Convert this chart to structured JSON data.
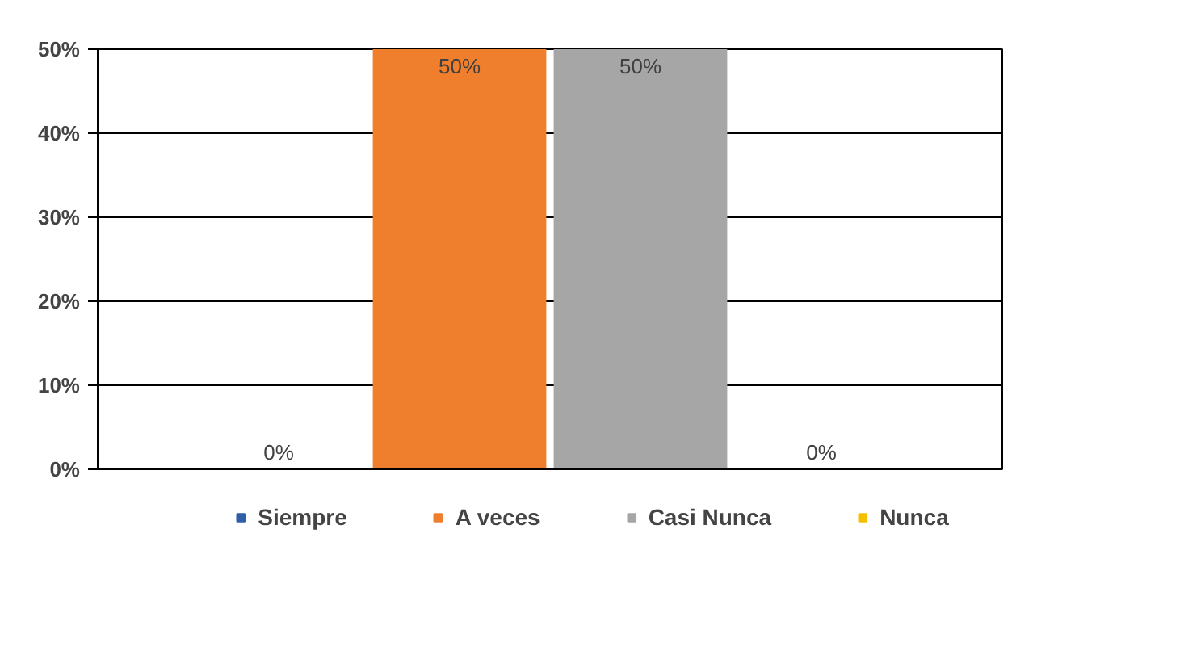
{
  "chart_data": {
    "type": "bar",
    "categories": [
      null
    ],
    "series": [
      {
        "name": "Siempre",
        "color": "#2e5fa8",
        "values": [
          0
        ],
        "value_labels": [
          "0%"
        ]
      },
      {
        "name": "A veces",
        "color": "#f07f2d",
        "values": [
          50
        ],
        "value_labels": [
          "50%"
        ]
      },
      {
        "name": "Casi Nunca",
        "color": "#a6a6a6",
        "values": [
          50
        ],
        "value_labels": [
          "50%"
        ]
      },
      {
        "name": "Nunca",
        "color": "#f5c000",
        "values": [
          0
        ],
        "value_labels": [
          "0%"
        ]
      }
    ],
    "ylim": [
      0,
      50
    ],
    "yticks": [
      {
        "value": 0,
        "label": "0%"
      },
      {
        "value": 10,
        "label": "10%"
      },
      {
        "value": 20,
        "label": "20%"
      },
      {
        "value": 30,
        "label": "30%"
      },
      {
        "value": 40,
        "label": "40%"
      },
      {
        "value": 50,
        "label": "50%"
      }
    ],
    "grid": "y",
    "legend": "bottom"
  }
}
